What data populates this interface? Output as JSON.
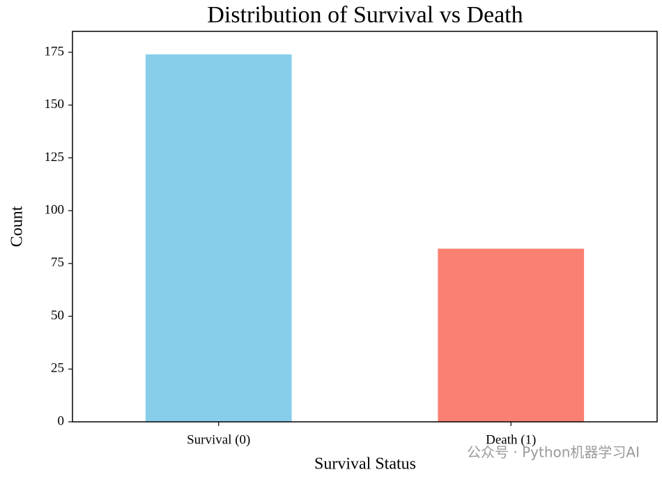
{
  "chart_data": {
    "type": "bar",
    "title": "Distribution of Survival vs Death",
    "x_label": "Survival Status",
    "y_label": "Count",
    "categories": [
      "Survival (0)",
      "Death (1)"
    ],
    "values": [
      174,
      82
    ],
    "colors": [
      "#87ceeb",
      "#fa8072"
    ],
    "ylim": [
      0,
      184.9
    ],
    "yticks": [
      0,
      25,
      50,
      75,
      100,
      125,
      150,
      175
    ],
    "grid": false,
    "watermark": "公众号 · Python机器学习AI"
  }
}
